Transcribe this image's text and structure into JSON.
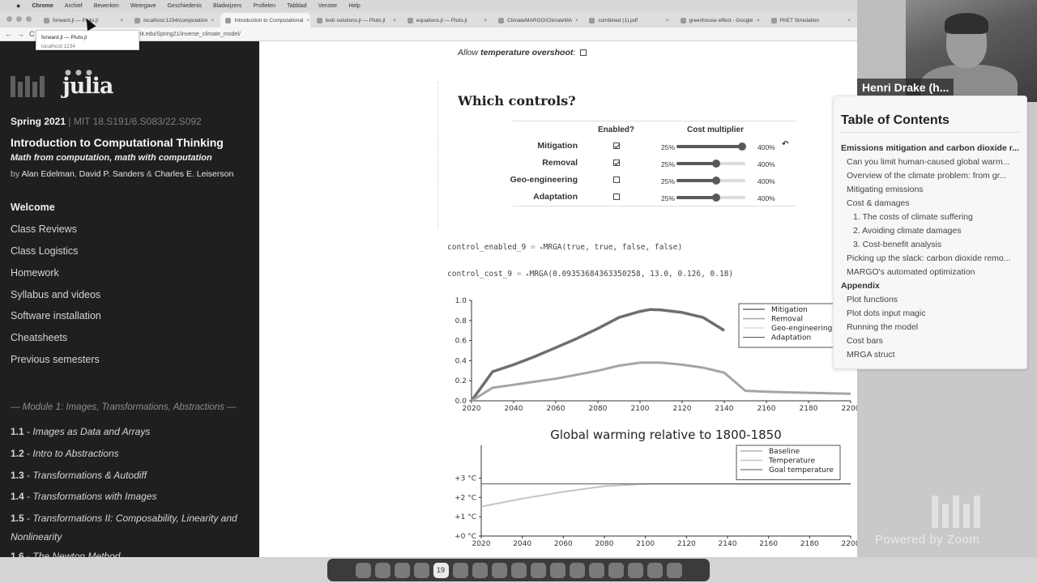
{
  "menubar": {
    "apple": "",
    "items": [
      "Chrome",
      "Archief",
      "Bewerken",
      "Weergave",
      "Geschiedenis",
      "Bladwijzers",
      "Profielen",
      "Tabblad",
      "Venster",
      "Help"
    ]
  },
  "tabs": [
    {
      "label": "forward.jl — Pluto.jl"
    },
    {
      "label": "localhost:1234/computation"
    },
    {
      "label": "Introduction to Computational"
    },
    {
      "label": "bwb solutions.jl — Pluto.jl"
    },
    {
      "label": "equations.jl — Pluto.jl"
    },
    {
      "label": "ClimateMARGO/ClimateMA"
    },
    {
      "label": "combined (1).pdf"
    },
    {
      "label": "greenhouse effect - Google"
    },
    {
      "label": "PhET Simulation"
    }
  ],
  "address": {
    "nav_back": "←",
    "nav_forward": "→",
    "reload": "C",
    "url": "mit.edu/Spring21/inverse_climate_model/"
  },
  "tooltip": {
    "title": "forward.jl — Pluto.jl",
    "subtitle": "localhost:1234"
  },
  "sidebar": {
    "logo_julia": "julia",
    "term": "Spring 2021",
    "codes": " | MIT 18.S191/6.S083/22.S092",
    "title": "Introduction to Computational Thinking",
    "subtitle": "Math from computation, math with computation",
    "authors_prefix": "by ",
    "author1": "Alan Edelman",
    "author2": "David P. Sanders",
    "authors_amp": " & ",
    "author3": "Charles E. Leiserson",
    "sep": ", ",
    "nav": [
      "Welcome",
      "Class Reviews",
      "Class Logistics",
      "Homework",
      "Syllabus and videos",
      "Software installation",
      "Cheatsheets",
      "Previous semesters"
    ],
    "module_heading": "Module 1: Images, Transformations, Abstractions",
    "lectures": [
      {
        "num": "1.1",
        "sep": " - ",
        "title": "Images as Data and Arrays"
      },
      {
        "num": "1.2",
        "sep": " - ",
        "title": "Intro to Abstractions"
      },
      {
        "num": "1.3",
        "sep": " - ",
        "title": "Transformations & Autodiff"
      },
      {
        "num": "1.4",
        "sep": " - ",
        "title": "Transformations with Images"
      },
      {
        "num": "1.5",
        "sep": " - ",
        "title": "Transformations II: Composability, Linearity and Nonlinearity"
      },
      {
        "num": "1.6",
        "sep": " - ",
        "title": "The Newton Method"
      }
    ]
  },
  "notebook": {
    "overshoot_label_pre": "Allow ",
    "overshoot_label_bold": "temperature overshoot",
    "overshoot_label_post": ":",
    "overshoot_checked": false,
    "controls_heading": "Which controls?",
    "col_enabled": "Enabled?",
    "col_cost": "Cost multiplier",
    "slider_min": "25%",
    "slider_max": "400%",
    "controls": [
      {
        "name": "Mitigation",
        "enabled": true,
        "level": 0.95
      },
      {
        "name": "Removal",
        "enabled": true,
        "level": 0.58
      },
      {
        "name": "Geo-engineering",
        "enabled": false,
        "level": 0.58
      },
      {
        "name": "Adaptation",
        "enabled": false,
        "level": 0.58
      }
    ],
    "undo_icon": "↶",
    "code1_name": "control_enabled_9",
    "code1_eq": " = ",
    "code1_tri": "▸",
    "code1_value": "MRGA(true, true, false, false)",
    "code2_name": "control_cost_9",
    "code2_eq": " = ",
    "code2_tri": "▸",
    "code2_value": "MRGA(0.09353684363350258, 13.0, 0.126, 0.18)"
  },
  "chart_data": [
    {
      "type": "line",
      "title": "",
      "xlabel": "",
      "ylabel": "",
      "xlim": [
        2020,
        2200
      ],
      "ylim": [
        0.0,
        1.0
      ],
      "x_ticks": [
        "2020",
        "2040",
        "2060",
        "2080",
        "2100",
        "2120",
        "2140",
        "2160",
        "2180",
        "2200"
      ],
      "y_ticks": [
        "0.0",
        "0.2",
        "0.4",
        "0.6",
        "0.8",
        "1.0"
      ],
      "legend": [
        "Mitigation",
        "Removal",
        "Geo-engineering",
        "Adaptation"
      ],
      "legend_position": "top-right",
      "series": [
        {
          "name": "Mitigation",
          "color": "#6e6e6e",
          "width": 3.5,
          "x": [
            2020,
            2030,
            2040,
            2050,
            2060,
            2070,
            2080,
            2090,
            2100,
            2105,
            2110,
            2120,
            2130,
            2140
          ],
          "y": [
            0.0,
            0.29,
            0.36,
            0.44,
            0.53,
            0.62,
            0.72,
            0.83,
            0.89,
            0.91,
            0.905,
            0.88,
            0.83,
            0.7
          ]
        },
        {
          "name": "Removal",
          "color": "#a5a5a5",
          "width": 3,
          "x": [
            2020,
            2030,
            2040,
            2050,
            2060,
            2070,
            2080,
            2090,
            2100,
            2110,
            2120,
            2130,
            2140,
            2150,
            2160,
            2170,
            2180,
            2190,
            2200
          ],
          "y": [
            0.0,
            0.13,
            0.16,
            0.19,
            0.22,
            0.26,
            0.3,
            0.35,
            0.38,
            0.38,
            0.36,
            0.33,
            0.28,
            0.1,
            0.09,
            0.085,
            0.08,
            0.075,
            0.07
          ]
        },
        {
          "name": "Geo-engineering",
          "color": "#c9c9c9",
          "width": 1,
          "x": [],
          "y": []
        },
        {
          "name": "Adaptation",
          "color": "#555555",
          "width": 1,
          "x": [],
          "y": []
        }
      ]
    },
    {
      "type": "line",
      "title": "Global warming relative to 1800-1850",
      "xlabel": "",
      "ylabel": "",
      "xlim": [
        2020,
        2200
      ],
      "ylim": [
        0,
        4
      ],
      "x_ticks": [
        "2020",
        "2040",
        "2060",
        "2080",
        "2100",
        "2120",
        "2140",
        "2160",
        "2180",
        "2200"
      ],
      "y_ticks": [
        "+0 °C",
        "+1 °C",
        "+2 °C",
        "+3 °C"
      ],
      "legend": [
        "Baseline",
        "Temperature",
        "Goal temperature"
      ],
      "legend_position": "top-right",
      "series": [
        {
          "name": "Baseline",
          "color": "#888888",
          "width": 1,
          "x": [],
          "y": []
        },
        {
          "name": "Temperature",
          "color": "#c4c4c4",
          "width": 2,
          "x": [
            2020,
            2040,
            2060,
            2080,
            2100,
            2120,
            2140,
            2160,
            2180,
            2200
          ],
          "y": [
            1.3,
            1.65,
            1.95,
            2.2,
            2.3,
            2.3,
            2.3,
            2.3,
            2.3,
            2.3
          ]
        },
        {
          "name": "Goal temperature",
          "color": "#555555",
          "width": 1,
          "x": [
            2020,
            2200
          ],
          "y": [
            2.3,
            2.3
          ]
        }
      ]
    }
  ],
  "toc": {
    "title": "Table of Contents",
    "entries": [
      {
        "level": 1,
        "label": "Emissions mitigation and carbon dioxide r..."
      },
      {
        "level": 2,
        "label": "Can you limit human-caused global warm..."
      },
      {
        "level": 2,
        "label": "Overview of the climate problem: from gr..."
      },
      {
        "level": 2,
        "label": "Mitigating emissions"
      },
      {
        "level": 2,
        "label": "Cost & damages"
      },
      {
        "level": 3,
        "label": "1. The costs of climate suffering"
      },
      {
        "level": 3,
        "label": "2. Avoiding climate damages"
      },
      {
        "level": 3,
        "label": "3. Cost-benefit analysis"
      },
      {
        "level": 2,
        "label": "Picking up the slack: carbon dioxide remo..."
      },
      {
        "level": 2,
        "label": "MARGO's automated optimization"
      },
      {
        "level": 1,
        "label": "Appendix"
      },
      {
        "level": 2,
        "label": "Plot functions"
      },
      {
        "level": 2,
        "label": "Plot dots input magic"
      },
      {
        "level": 2,
        "label": "Running the model"
      },
      {
        "level": 2,
        "label": "Cost bars"
      },
      {
        "level": 2,
        "label": "MRGA struct"
      }
    ]
  },
  "webcam": {
    "name": "Henri Drake (h..."
  },
  "zoom": {
    "powered": "Powered by Zoom"
  },
  "dock": {
    "apps": [
      "finder-icon",
      "launchpad-icon",
      "safari-icon",
      "chrome-icon",
      "calendar-icon",
      "notes-icon",
      "terminal-icon",
      "files-icon",
      "github-icon",
      "settings-icon",
      "vscode-icon",
      "mail-icon",
      "whatsapp-icon",
      "telegram-icon",
      "zoom-icon",
      "teams-icon",
      "trash-icon"
    ],
    "calendar_day": "19"
  }
}
